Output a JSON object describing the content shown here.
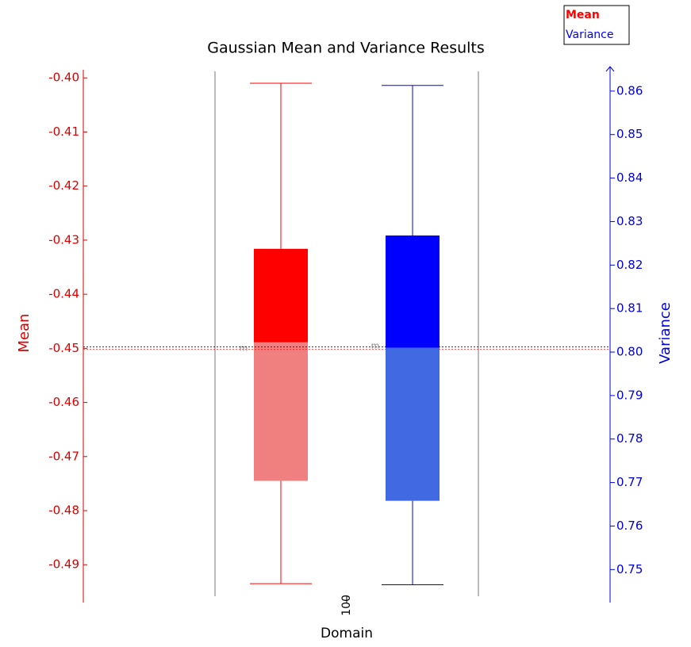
{
  "chart_data": {
    "type": "box",
    "title": "Gaussian Mean and Variance Results",
    "x_label": "Domain",
    "y_label": "Mean",
    "y2_label": "Variance",
    "categories": [
      "100"
    ],
    "ylim": [
      -0.497,
      -0.3985
    ],
    "yticks": [
      {
        "value": -0.4,
        "label": "-0.40"
      },
      -0.41,
      -0.42,
      -0.43,
      -0.44,
      -0.45,
      -0.46,
      -0.47,
      -0.48,
      -0.49
    ],
    "y2lim": [
      0.7424,
      0.8649
    ],
    "y2ticks": [
      0.86,
      0.85,
      0.84,
      0.83,
      0.82,
      0.81,
      {
        "value": 0.8,
        "label": "0.80"
      },
      0.79,
      0.78,
      0.77,
      0.76,
      0.75
    ],
    "y_color": "#dd0000",
    "y2_color": "#0000dd",
    "legend_position": "upper right",
    "series": [
      {
        "name": "Mean",
        "color": "#ff0000",
        "lower_color": "#f08080",
        "axis": "y",
        "whisker_low": -0.4935,
        "q1": -0.4745,
        "median": -0.4489,
        "q3": -0.4316,
        "whisker_high": -0.401,
        "mean": -0.4502,
        "mean_label": "m"
      },
      {
        "name": "Variance",
        "color": "#0000ff",
        "lower_color": "#4169e1",
        "axis": "y2",
        "whisker_low": 0.7465,
        "q1": 0.7658,
        "median": 0.801,
        "q3": 0.8268,
        "whisker_high": 0.8613,
        "mean": 0.8012,
        "mean_label": "m"
      }
    ]
  }
}
